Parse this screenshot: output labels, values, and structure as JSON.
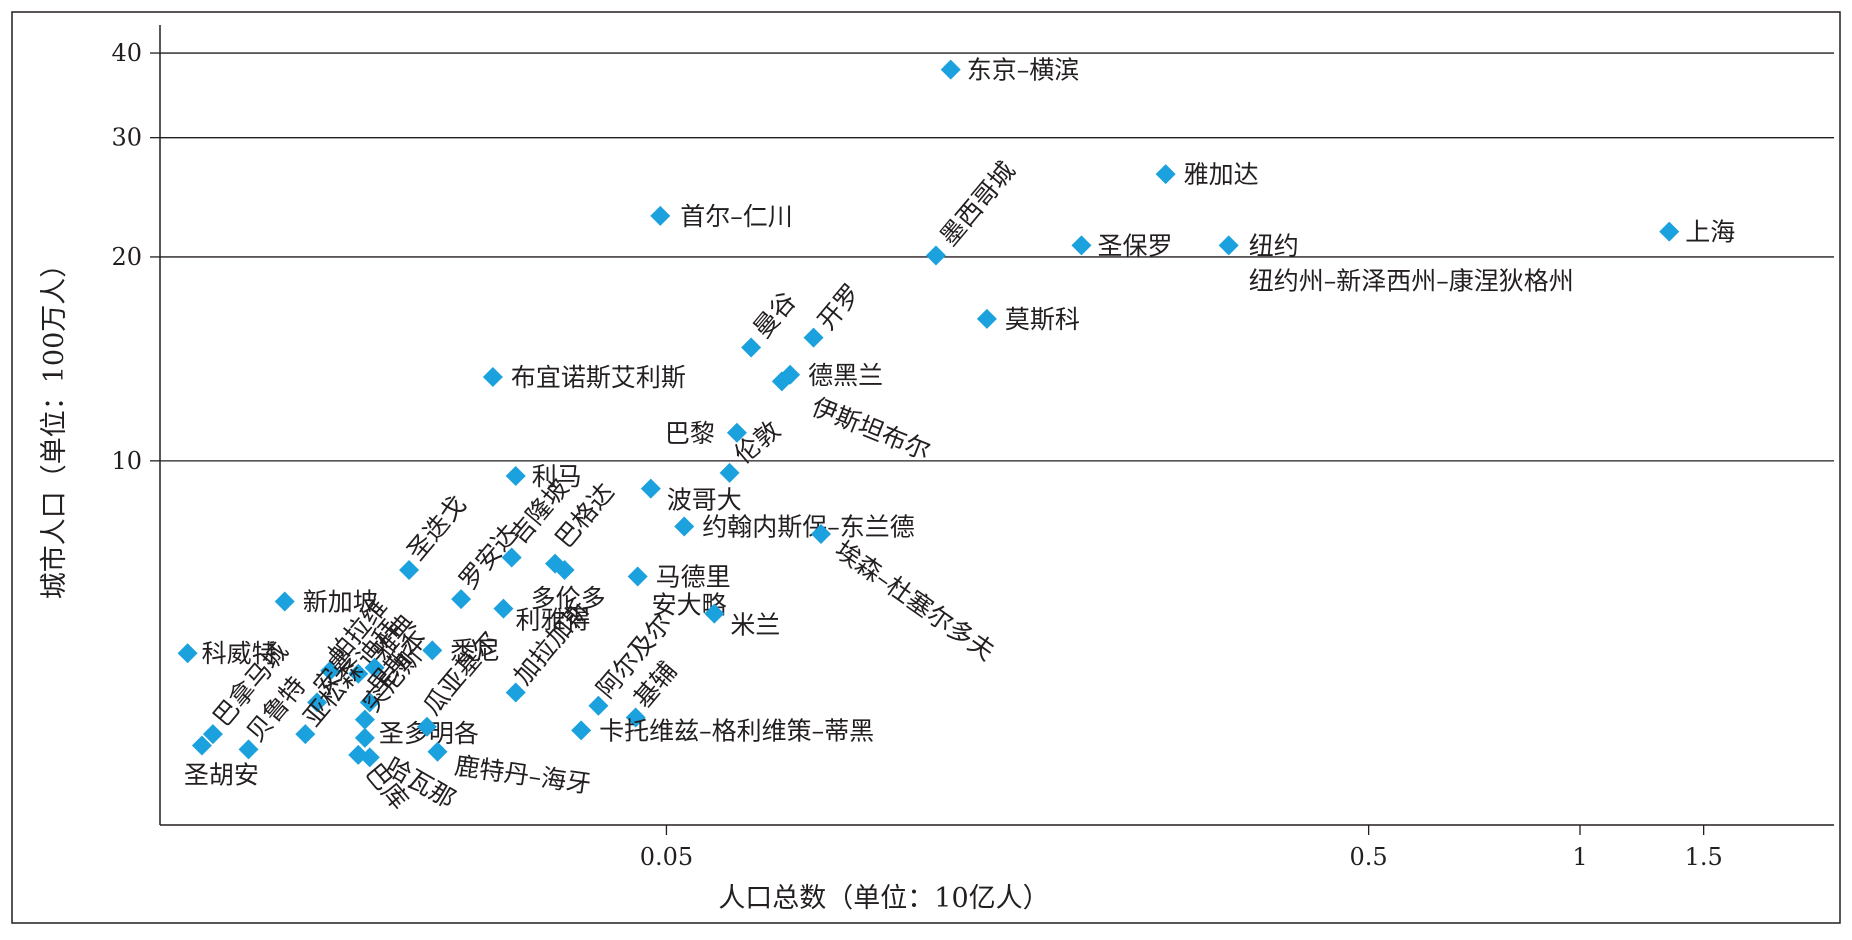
{
  "chart_data": {
    "type": "scatter",
    "title": "",
    "xlabel": "人口总数（单位：10亿人）",
    "ylabel": "城市人口（单位：100万人）",
    "x_scale": "log",
    "y_scale": "log",
    "xlim": [
      0.0095,
      2.3
    ],
    "ylim": [
      2.9,
      44
    ],
    "x_ticks": [
      {
        "value": 0.05,
        "label": "0.05"
      },
      {
        "value": 0.5,
        "label": "0.5"
      },
      {
        "value": 1,
        "label": "1"
      },
      {
        "value": 1.5,
        "label": "1.5"
      }
    ],
    "y_ticks": [
      {
        "value": 10,
        "label": "10"
      },
      {
        "value": 20,
        "label": "20"
      },
      {
        "value": 30,
        "label": "30"
      },
      {
        "value": 40,
        "label": "40"
      }
    ],
    "grid": {
      "horizontal": [
        10,
        20,
        30,
        40
      ],
      "vertical": false
    },
    "marker_color": "#1ba1dd",
    "marker_shape": "diamond",
    "points": [
      {
        "label": "东京–横滨",
        "x": 0.127,
        "y": 37.8
      },
      {
        "label": "雅加达",
        "x": 0.257,
        "y": 26.5
      },
      {
        "label": "首尔–仁川",
        "x": 0.049,
        "y": 23.0
      },
      {
        "label": "上海",
        "x": 1.34,
        "y": 21.8
      },
      {
        "label": "墨西哥城",
        "x": 0.121,
        "y": 20.1
      },
      {
        "label": "圣保罗",
        "x": 0.195,
        "y": 20.8
      },
      {
        "label": "纽约",
        "x": 0.316,
        "y": 20.8
      },
      {
        "label": "纽约州–新泽西州–康涅狄格州",
        "x": 0.316,
        "y": 20.8
      },
      {
        "label": "莫斯科",
        "x": 0.143,
        "y": 16.2
      },
      {
        "label": "开罗",
        "x": 0.081,
        "y": 15.2
      },
      {
        "label": "曼谷",
        "x": 0.066,
        "y": 14.7
      },
      {
        "label": "德黑兰",
        "x": 0.075,
        "y": 13.4
      },
      {
        "label": "伊斯坦布尔",
        "x": 0.073,
        "y": 13.1
      },
      {
        "label": "布宜诺斯艾利斯",
        "x": 0.0283,
        "y": 13.3
      },
      {
        "label": "巴黎",
        "x": 0.063,
        "y": 11.0
      },
      {
        "label": "伦敦",
        "x": 0.0615,
        "y": 9.6
      },
      {
        "label": "利马",
        "x": 0.0305,
        "y": 9.5
      },
      {
        "label": "波哥大",
        "x": 0.0475,
        "y": 9.1
      },
      {
        "label": "约翰内斯保–东兰德",
        "x": 0.053,
        "y": 8.0
      },
      {
        "label": "埃森–杜塞尔多夫",
        "x": 0.083,
        "y": 7.8
      },
      {
        "label": "吉隆坡",
        "x": 0.0301,
        "y": 7.2
      },
      {
        "label": "巴格达",
        "x": 0.0347,
        "y": 7.05
      },
      {
        "label": "多伦多",
        "x": 0.0358,
        "y": 6.9
      },
      {
        "label": "马德里",
        "x": 0.0455,
        "y": 6.75
      },
      {
        "label": "安大略",
        "x": 0.0455,
        "y": 6.75
      },
      {
        "label": "圣迭戈",
        "x": 0.0215,
        "y": 6.9
      },
      {
        "label": "罗安达",
        "x": 0.0255,
        "y": 6.25
      },
      {
        "label": "利雅得",
        "x": 0.0293,
        "y": 6.05
      },
      {
        "label": "米兰",
        "x": 0.0585,
        "y": 5.95
      },
      {
        "label": "新加坡",
        "x": 0.0143,
        "y": 6.2
      },
      {
        "label": "科威特",
        "x": 0.0104,
        "y": 5.2
      },
      {
        "label": "悉尼",
        "x": 0.0232,
        "y": 5.25
      },
      {
        "label": "加拉加斯",
        "x": 0.0305,
        "y": 4.55
      },
      {
        "label": "阿尔及尔",
        "x": 0.04,
        "y": 4.35
      },
      {
        "label": "基辅",
        "x": 0.0452,
        "y": 4.18
      },
      {
        "label": "帕拉维",
        "x": 0.0166,
        "y": 4.9
      },
      {
        "label": "迪拜",
        "x": 0.0182,
        "y": 4.85
      },
      {
        "label": "雅典",
        "x": 0.0192,
        "y": 4.95
      },
      {
        "label": "安曼",
        "x": 0.0159,
        "y": 4.4
      },
      {
        "label": "里斯本",
        "x": 0.0189,
        "y": 4.4
      },
      {
        "label": "亚松森",
        "x": 0.0153,
        "y": 3.95
      },
      {
        "label": "突尼斯",
        "x": 0.0186,
        "y": 4.15
      },
      {
        "label": "卡托维兹–格利维策–蒂黑",
        "x": 0.0378,
        "y": 4.0
      },
      {
        "label": "圣多明各",
        "x": 0.0186,
        "y": 3.9
      },
      {
        "label": "瓜亚基尔",
        "x": 0.0228,
        "y": 4.05
      },
      {
        "label": "巴拿马城",
        "x": 0.0113,
        "y": 3.95
      },
      {
        "label": "圣胡安",
        "x": 0.0109,
        "y": 3.8
      },
      {
        "label": "贝鲁特",
        "x": 0.0127,
        "y": 3.75
      },
      {
        "label": "巴库",
        "x": 0.0182,
        "y": 3.68
      },
      {
        "label": "哈瓦那",
        "x": 0.0189,
        "y": 3.65
      },
      {
        "label": "鹿特丹–海牙",
        "x": 0.0236,
        "y": 3.72
      }
    ]
  }
}
